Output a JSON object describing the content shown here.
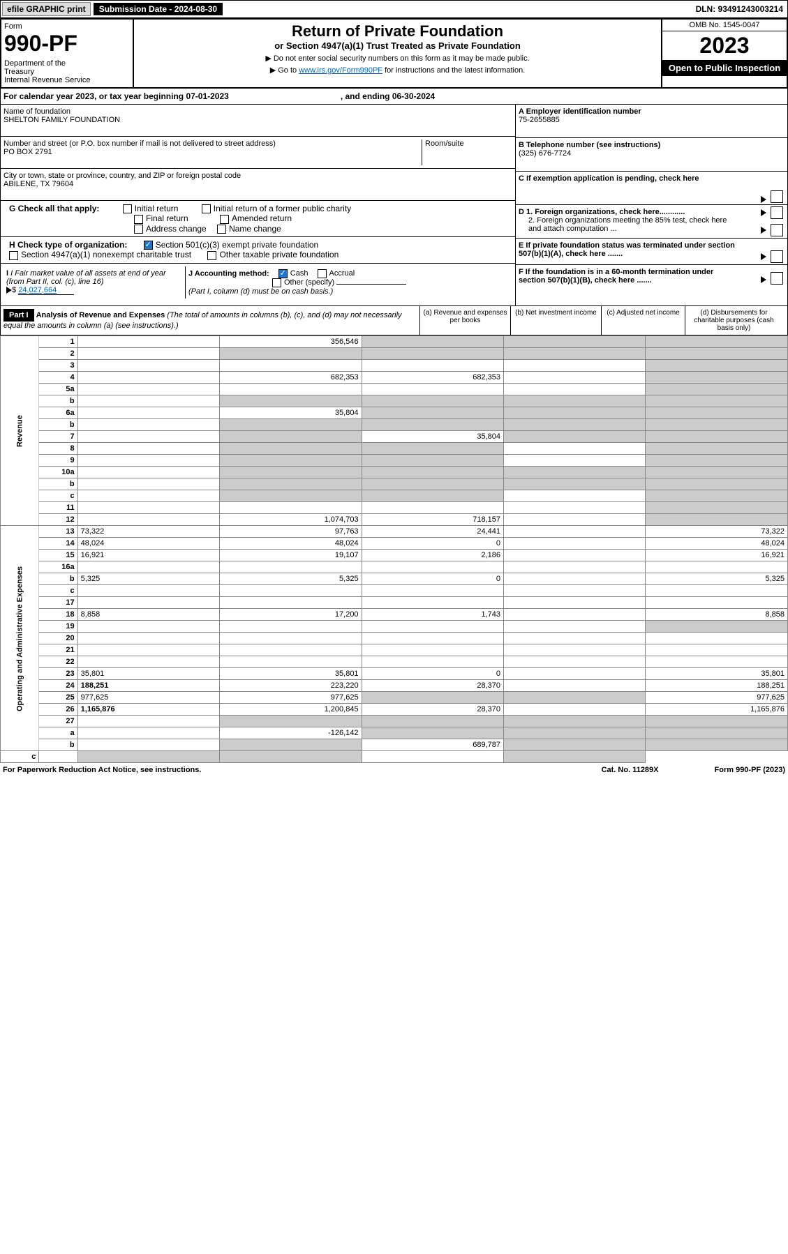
{
  "header": {
    "efile": "efile GRAPHIC print",
    "sub_date_lbl": "Submission Date - 2024-08-30",
    "dln": "DLN: 93491243003214"
  },
  "form_head": {
    "form_lbl": "Form",
    "form_num": "990-PF",
    "dept": "Department of the Treasury\nInternal Revenue Service",
    "title": "Return of Private Foundation",
    "subtitle": "or Section 4947(a)(1) Trust Treated as Private Foundation",
    "note1": "▶ Do not enter social security numbers on this form as it may be made public.",
    "note2_pre": "▶ Go to ",
    "note2_link": "www.irs.gov/Form990PF",
    "note2_post": " for instructions and the latest information.",
    "omb": "OMB No. 1545-0047",
    "year": "2023",
    "open": "Open to Public Inspection"
  },
  "cal": {
    "text": "For calendar year 2023, or tax year beginning 07-01-2023",
    "end": ", and ending 06-30-2024"
  },
  "ident": {
    "name_lbl": "Name of foundation",
    "name": "SHELTON FAMILY FOUNDATION",
    "addr_lbl": "Number and street (or P.O. box number if mail is not delivered to street address)",
    "addr": "PO BOX 2791",
    "room_lbl": "Room/suite",
    "city_lbl": "City or town, state or province, country, and ZIP or foreign postal code",
    "city": "ABILENE, TX  79604",
    "a_lbl": "A Employer identification number",
    "a_val": "75-2655885",
    "b_lbl": "B Telephone number (see instructions)",
    "b_val": "(325) 676-7724",
    "c_lbl": "C If exemption application is pending, check here",
    "d1": "D 1. Foreign organizations, check here............",
    "d2": "2. Foreign organizations meeting the 85% test, check here and attach computation ...",
    "e": "E  If private foundation status was terminated under section 507(b)(1)(A), check here .......",
    "f": "F  If the foundation is in a 60-month termination under section 507(b)(1)(B), check here .......",
    "g_lbl": "G Check all that apply:",
    "g_initial": "Initial return",
    "g_initial_former": "Initial return of a former public charity",
    "g_final": "Final return",
    "g_amended": "Amended return",
    "g_addr": "Address change",
    "g_name": "Name change",
    "h_lbl": "H Check type of organization:",
    "h_501": "Section 501(c)(3) exempt private foundation",
    "h_4947": "Section 4947(a)(1) nonexempt charitable trust",
    "h_other_tax": "Other taxable private foundation",
    "i_lbl": "I Fair market value of all assets at end of year (from Part II, col. (c), line 16)",
    "i_val": "24,027,664",
    "j_lbl": "J Accounting method:",
    "j_cash": "Cash",
    "j_accrual": "Accrual",
    "j_other": "Other (specify)",
    "j_note": "(Part I, column (d) must be on cash basis.)"
  },
  "part1": {
    "label": "Part I",
    "title": "Analysis of Revenue and Expenses",
    "title_note": "(The total of amounts in columns (b), (c), and (d) may not necessarily equal the amounts in column (a) (see instructions).)",
    "col_a": "(a)   Revenue and expenses per books",
    "col_b": "(b)   Net investment income",
    "col_c": "(c)   Adjusted net income",
    "col_d": "(d)  Disbursements for charitable purposes (cash basis only)",
    "side_rev": "Revenue",
    "side_exp": "Operating and Administrative Expenses"
  },
  "rows": [
    {
      "n": "1",
      "d": "",
      "a": "356,546",
      "b": "",
      "c": "",
      "sb": true,
      "sc": true,
      "sd": true
    },
    {
      "n": "2",
      "d": "",
      "a": "",
      "b": "",
      "c": "",
      "sa": true,
      "sb": true,
      "sc": true,
      "sd": true
    },
    {
      "n": "3",
      "d": "",
      "a": "",
      "b": "",
      "c": "",
      "sd": true
    },
    {
      "n": "4",
      "d": "",
      "a": "682,353",
      "b": "682,353",
      "c": "",
      "sd": true
    },
    {
      "n": "5a",
      "d": "",
      "a": "",
      "b": "",
      "c": "",
      "sd": true
    },
    {
      "n": "b",
      "d": "",
      "a": "",
      "b": "",
      "c": "",
      "sa": true,
      "sb": true,
      "sc": true,
      "sd": true
    },
    {
      "n": "6a",
      "d": "",
      "a": "35,804",
      "b": "",
      "c": "",
      "sb": true,
      "sc": true,
      "sd": true
    },
    {
      "n": "b",
      "d": "",
      "a": "",
      "b": "",
      "c": "",
      "sa": true,
      "sb": true,
      "sc": true,
      "sd": true
    },
    {
      "n": "7",
      "d": "",
      "a": "",
      "b": "35,804",
      "c": "",
      "sa": true,
      "sc": true,
      "sd": true
    },
    {
      "n": "8",
      "d": "",
      "a": "",
      "b": "",
      "c": "",
      "sa": true,
      "sb": true,
      "sd": true
    },
    {
      "n": "9",
      "d": "",
      "a": "",
      "b": "",
      "c": "",
      "sa": true,
      "sb": true,
      "sd": true
    },
    {
      "n": "10a",
      "d": "",
      "a": "",
      "b": "",
      "c": "",
      "sa": true,
      "sb": true,
      "sc": true,
      "sd": true
    },
    {
      "n": "b",
      "d": "",
      "a": "",
      "b": "",
      "c": "",
      "sa": true,
      "sb": true,
      "sc": true,
      "sd": true
    },
    {
      "n": "c",
      "d": "",
      "a": "",
      "b": "",
      "c": "",
      "sa": true,
      "sb": true,
      "sd": true
    },
    {
      "n": "11",
      "d": "",
      "a": "",
      "b": "",
      "c": "",
      "sd": true
    },
    {
      "n": "12",
      "d": "",
      "bold": true,
      "a": "1,074,703",
      "b": "718,157",
      "c": "",
      "sd": true
    },
    {
      "n": "13",
      "d": "73,322",
      "a": "97,763",
      "b": "24,441",
      "c": ""
    },
    {
      "n": "14",
      "d": "48,024",
      "a": "48,024",
      "b": "0",
      "c": ""
    },
    {
      "n": "15",
      "d": "16,921",
      "a": "19,107",
      "b": "2,186",
      "c": ""
    },
    {
      "n": "16a",
      "d": "",
      "a": "",
      "b": "",
      "c": ""
    },
    {
      "n": "b",
      "d": "5,325",
      "a": "5,325",
      "b": "0",
      "c": ""
    },
    {
      "n": "c",
      "d": "",
      "a": "",
      "b": "",
      "c": ""
    },
    {
      "n": "17",
      "d": "",
      "a": "",
      "b": "",
      "c": ""
    },
    {
      "n": "18",
      "d": "8,858",
      "a": "17,200",
      "b": "1,743",
      "c": ""
    },
    {
      "n": "19",
      "d": "",
      "a": "",
      "b": "",
      "c": "",
      "sd": true
    },
    {
      "n": "20",
      "d": "",
      "a": "",
      "b": "",
      "c": ""
    },
    {
      "n": "21",
      "d": "",
      "a": "",
      "b": "",
      "c": ""
    },
    {
      "n": "22",
      "d": "",
      "a": "",
      "b": "",
      "c": ""
    },
    {
      "n": "23",
      "d": "35,801",
      "a": "35,801",
      "b": "0",
      "c": ""
    },
    {
      "n": "24",
      "d": "188,251",
      "bold": true,
      "a": "223,220",
      "b": "28,370",
      "c": ""
    },
    {
      "n": "25",
      "d": "977,625",
      "a": "977,625",
      "b": "",
      "c": "",
      "sb": true,
      "sc": true
    },
    {
      "n": "26",
      "d": "1,165,876",
      "bold": true,
      "a": "1,200,845",
      "b": "28,370",
      "c": ""
    },
    {
      "n": "27",
      "d": "",
      "a": "",
      "b": "",
      "c": "",
      "sa": true,
      "sb": true,
      "sc": true,
      "sd": true
    },
    {
      "n": "a",
      "d": "",
      "bold": true,
      "a": "-126,142",
      "b": "",
      "c": "",
      "sb": true,
      "sc": true,
      "sd": true
    },
    {
      "n": "b",
      "d": "",
      "bold": true,
      "a": "",
      "b": "689,787",
      "c": "",
      "sa": true,
      "sc": true,
      "sd": true
    },
    {
      "n": "c",
      "d": "",
      "bold": true,
      "a": "",
      "b": "",
      "c": "",
      "sa": true,
      "sb": true,
      "sd": true
    }
  ],
  "footer": {
    "pra": "For Paperwork Reduction Act Notice, see instructions.",
    "cat": "Cat. No. 11289X",
    "form": "Form 990-PF (2023)"
  }
}
